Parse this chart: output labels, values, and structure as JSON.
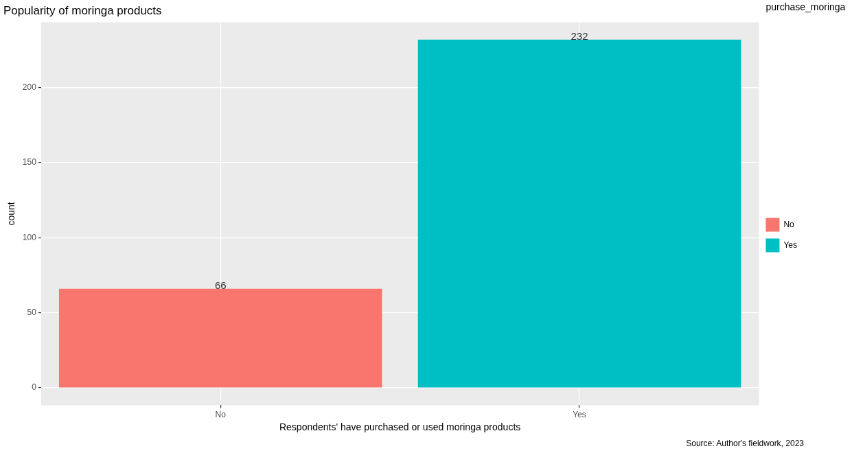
{
  "chart_data": {
    "type": "bar",
    "title": "Popularity of moringa products",
    "xlabel": "Respondents' have purchased or used moringa products",
    "ylabel": "count",
    "legend_title": "purchase_moringa",
    "categories": [
      "No",
      "Yes"
    ],
    "series": [
      {
        "name": "No",
        "color": "#f8766d",
        "values": [
          66,
          null
        ]
      },
      {
        "name": "Yes",
        "color": "#00bfc4",
        "values": [
          null,
          232
        ]
      }
    ],
    "ylim": [
      -11.6,
      243.6
    ],
    "yticks": [
      0,
      50,
      100,
      150,
      200
    ],
    "grid": true,
    "legend": "right",
    "data_labels": true,
    "annotations": [
      "Source: Author's fieldwork, 2023"
    ]
  }
}
